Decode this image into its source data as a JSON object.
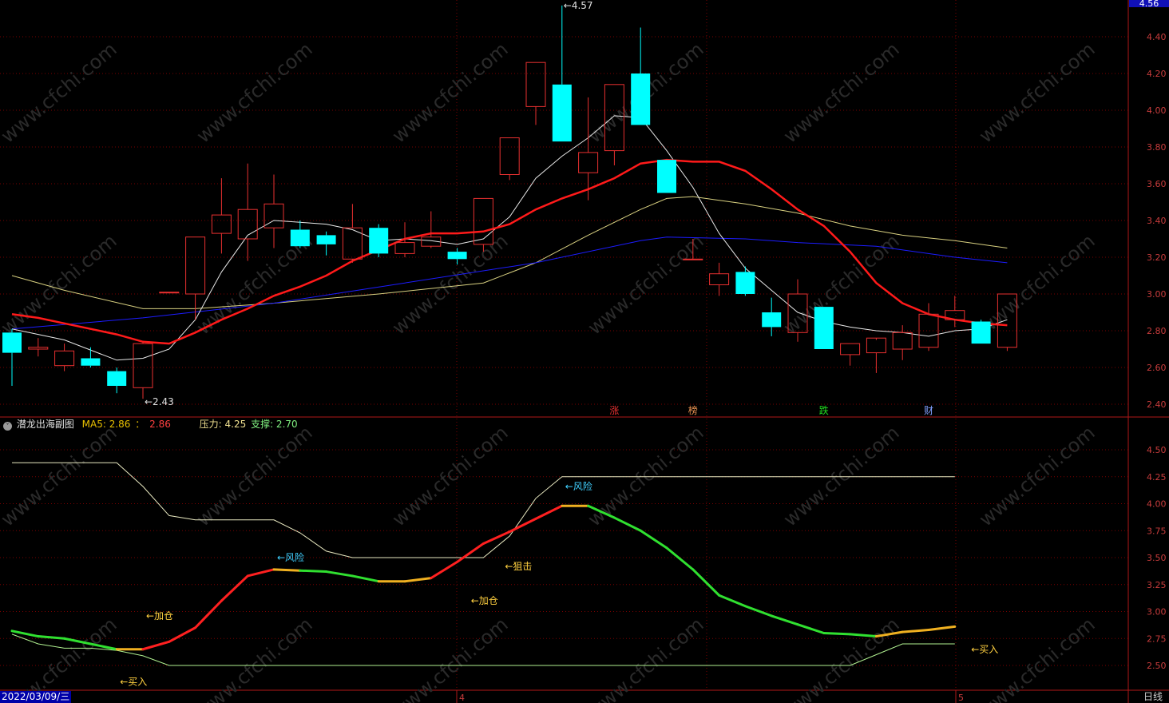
{
  "colors": {
    "bg": "#000000",
    "grid": "#7a0000",
    "up": "#e83030",
    "down": "#00ffff",
    "ma_white": "#e8e8e8",
    "ma_red": "#ff1a1a",
    "ma_blue": "#1c1cff",
    "ma_yellow": "#d8d080",
    "axis_text": "#c83c3c",
    "sub_axis_text": "#c83c3c"
  },
  "header": {
    "title": "潜龙出海副图",
    "ma5_label": "MA5: 2.86",
    "ma5_sep": "：",
    "ma5_value2": "2.86",
    "pressure": "压力: 4.25",
    "support": "支撑: 2.70"
  },
  "footer": {
    "date": "2022/03/09/三",
    "period": "日线",
    "month_labels": [
      "4",
      "5"
    ]
  },
  "current_price_tag": "4.56",
  "watermark": "www.cfchi.com",
  "chart_data": [
    {
      "type": "candlestick",
      "ylim": [
        2.36,
        4.56
      ],
      "yticks": [
        "2.40",
        "2.60",
        "2.80",
        "3.00",
        "3.20",
        "3.40",
        "3.60",
        "3.80",
        "4.00",
        "4.20",
        "4.40"
      ],
      "candles": [
        {
          "o": 2.79,
          "h": 2.81,
          "l": 2.5,
          "c": 2.68
        },
        {
          "o": 2.7,
          "h": 2.76,
          "l": 2.66,
          "c": 2.71
        },
        {
          "o": 2.61,
          "h": 2.73,
          "l": 2.58,
          "c": 2.69
        },
        {
          "o": 2.65,
          "h": 2.71,
          "l": 2.6,
          "c": 2.61
        },
        {
          "o": 2.58,
          "h": 2.6,
          "l": 2.46,
          "c": 2.5
        },
        {
          "o": 2.49,
          "h": 2.74,
          "l": 2.43,
          "c": 2.73
        },
        {
          "o": 3.01,
          "h": 3.01,
          "l": 3.01,
          "c": 3.01
        },
        {
          "o": 3.0,
          "h": 3.31,
          "l": 2.86,
          "c": 3.31
        },
        {
          "o": 3.33,
          "h": 3.63,
          "l": 3.22,
          "c": 3.43
        },
        {
          "o": 3.3,
          "h": 3.71,
          "l": 3.18,
          "c": 3.46
        },
        {
          "o": 3.36,
          "h": 3.65,
          "l": 3.25,
          "c": 3.49
        },
        {
          "o": 3.35,
          "h": 3.4,
          "l": 3.25,
          "c": 3.26
        },
        {
          "o": 3.32,
          "h": 3.34,
          "l": 3.21,
          "c": 3.27
        },
        {
          "o": 3.19,
          "h": 3.49,
          "l": 3.17,
          "c": 3.36
        },
        {
          "o": 3.36,
          "h": 3.38,
          "l": 3.2,
          "c": 3.22
        },
        {
          "o": 3.22,
          "h": 3.39,
          "l": 3.2,
          "c": 3.28
        },
        {
          "o": 3.26,
          "h": 3.45,
          "l": 3.25,
          "c": 3.31
        },
        {
          "o": 3.23,
          "h": 3.25,
          "l": 3.16,
          "c": 3.19
        },
        {
          "o": 3.27,
          "h": 3.52,
          "l": 3.23,
          "c": 3.52
        },
        {
          "o": 3.65,
          "h": 3.85,
          "l": 3.62,
          "c": 3.85
        },
        {
          "o": 4.02,
          "h": 4.26,
          "l": 3.92,
          "c": 4.26
        },
        {
          "o": 4.14,
          "h": 4.57,
          "l": 3.83,
          "c": 3.83
        },
        {
          "o": 3.66,
          "h": 4.07,
          "l": 3.51,
          "c": 3.77
        },
        {
          "o": 3.78,
          "h": 4.14,
          "l": 3.7,
          "c": 4.14
        },
        {
          "o": 4.2,
          "h": 4.45,
          "l": 3.92,
          "c": 3.92
        },
        {
          "o": 3.73,
          "h": 3.73,
          "l": 3.55,
          "c": 3.55
        },
        {
          "o": 3.19,
          "h": 3.3,
          "l": 3.19,
          "c": 3.19
        },
        {
          "o": 3.05,
          "h": 3.17,
          "l": 2.99,
          "c": 3.11
        },
        {
          "o": 3.12,
          "h": 3.15,
          "l": 2.99,
          "c": 3.0
        },
        {
          "o": 2.9,
          "h": 2.98,
          "l": 2.77,
          "c": 2.82
        },
        {
          "o": 2.79,
          "h": 3.08,
          "l": 2.74,
          "c": 3.0
        },
        {
          "o": 2.93,
          "h": 2.93,
          "l": 2.7,
          "c": 2.7
        },
        {
          "o": 2.67,
          "h": 2.73,
          "l": 2.61,
          "c": 2.73
        },
        {
          "o": 2.68,
          "h": 2.75,
          "l": 2.57,
          "c": 2.76
        },
        {
          "o": 2.7,
          "h": 2.83,
          "l": 2.64,
          "c": 2.79
        },
        {
          "o": 2.71,
          "h": 2.95,
          "l": 2.69,
          "c": 2.89
        },
        {
          "o": 2.86,
          "h": 2.99,
          "l": 2.82,
          "c": 2.91
        },
        {
          "o": 2.85,
          "h": 2.86,
          "l": 2.73,
          "c": 2.73
        },
        {
          "o": 2.71,
          "h": 3.0,
          "l": 2.69,
          "c": 3.0
        }
      ],
      "ma_white": [
        [
          0,
          2.81
        ],
        [
          2,
          2.75
        ],
        [
          4,
          2.64
        ],
        [
          5,
          2.65
        ],
        [
          6,
          2.7
        ],
        [
          7,
          2.86
        ],
        [
          8,
          3.12
        ],
        [
          9,
          3.32
        ],
        [
          10,
          3.4
        ],
        [
          11,
          3.39
        ],
        [
          12,
          3.38
        ],
        [
          13,
          3.35
        ],
        [
          14,
          3.29
        ],
        [
          15,
          3.3
        ],
        [
          16,
          3.29
        ],
        [
          17,
          3.27
        ],
        [
          18,
          3.3
        ],
        [
          19,
          3.42
        ],
        [
          20,
          3.63
        ],
        [
          21,
          3.75
        ],
        [
          22,
          3.85
        ],
        [
          23,
          3.97
        ],
        [
          24,
          3.96
        ],
        [
          25,
          3.78
        ],
        [
          26,
          3.58
        ],
        [
          27,
          3.33
        ],
        [
          28,
          3.14
        ],
        [
          29,
          3.02
        ],
        [
          30,
          2.9
        ],
        [
          31,
          2.85
        ],
        [
          32,
          2.82
        ],
        [
          33,
          2.8
        ],
        [
          34,
          2.79
        ],
        [
          35,
          2.77
        ],
        [
          36,
          2.8
        ],
        [
          37,
          2.81
        ],
        [
          38,
          2.86
        ]
      ],
      "ma_red": [
        [
          0,
          2.89
        ],
        [
          1,
          2.87
        ],
        [
          2,
          2.84
        ],
        [
          3,
          2.81
        ],
        [
          4,
          2.78
        ],
        [
          5,
          2.74
        ],
        [
          6,
          2.73
        ],
        [
          7,
          2.79
        ],
        [
          8,
          2.86
        ],
        [
          9,
          2.92
        ],
        [
          10,
          2.99
        ],
        [
          11,
          3.04
        ],
        [
          12,
          3.1
        ],
        [
          13,
          3.18
        ],
        [
          14,
          3.24
        ],
        [
          15,
          3.3
        ],
        [
          16,
          3.33
        ],
        [
          17,
          3.33
        ],
        [
          18,
          3.34
        ],
        [
          19,
          3.38
        ],
        [
          20,
          3.46
        ],
        [
          21,
          3.52
        ],
        [
          22,
          3.57
        ],
        [
          23,
          3.63
        ],
        [
          24,
          3.71
        ],
        [
          25,
          3.73
        ],
        [
          26,
          3.72
        ],
        [
          27,
          3.72
        ],
        [
          28,
          3.67
        ],
        [
          29,
          3.57
        ],
        [
          30,
          3.46
        ],
        [
          31,
          3.37
        ],
        [
          32,
          3.23
        ],
        [
          33,
          3.06
        ],
        [
          34,
          2.95
        ],
        [
          35,
          2.89
        ],
        [
          36,
          2.86
        ],
        [
          37,
          2.84
        ],
        [
          38,
          2.83
        ]
      ],
      "ma_blue": [
        [
          0,
          2.81
        ],
        [
          5,
          2.87
        ],
        [
          10,
          2.95
        ],
        [
          15,
          3.06
        ],
        [
          20,
          3.17
        ],
        [
          24,
          3.29
        ],
        [
          25,
          3.31
        ],
        [
          28,
          3.3
        ],
        [
          30,
          3.28
        ],
        [
          33,
          3.26
        ],
        [
          36,
          3.2
        ],
        [
          38,
          3.17
        ]
      ],
      "ma_yellow": [
        [
          0,
          3.1
        ],
        [
          2,
          3.02
        ],
        [
          5,
          2.92
        ],
        [
          7,
          2.92
        ],
        [
          10,
          2.95
        ],
        [
          14,
          3.0
        ],
        [
          18,
          3.06
        ],
        [
          20,
          3.17
        ],
        [
          22,
          3.32
        ],
        [
          24,
          3.46
        ],
        [
          25,
          3.52
        ],
        [
          26,
          3.53
        ],
        [
          28,
          3.49
        ],
        [
          30,
          3.44
        ],
        [
          32,
          3.37
        ],
        [
          34,
          3.32
        ],
        [
          36,
          3.29
        ],
        [
          38,
          3.25
        ]
      ],
      "annotations": [
        {
          "text": "4.57",
          "index": 21,
          "price": 4.57
        },
        {
          "text": "2.43",
          "index": 5,
          "price": 2.43
        }
      ],
      "event_markers": [
        {
          "text": "涨",
          "index": 23,
          "color": "#e83030"
        },
        {
          "text": "榜",
          "index": 26,
          "color": "#e89050"
        },
        {
          "text": "跌",
          "index": 31,
          "color": "#20e020"
        },
        {
          "text": "财",
          "index": 35,
          "color": "#80a0ff"
        }
      ]
    },
    {
      "type": "line",
      "title": "潜龙出海副图",
      "ylim": [
        2.4,
        4.62
      ],
      "yticks": [
        "2.50",
        "2.75",
        "3.00",
        "3.25",
        "3.50",
        "3.75",
        "4.00",
        "4.25",
        "4.50"
      ],
      "series": [
        {
          "name": "MA5",
          "color": "multicolor",
          "values": [
            2.82,
            2.77,
            2.75,
            2.7,
            2.65,
            2.65,
            2.72,
            2.85,
            3.1,
            3.33,
            3.39,
            3.38,
            3.37,
            3.33,
            3.28,
            3.28,
            3.31,
            3.46,
            3.63,
            3.74,
            3.86,
            3.98,
            3.98,
            3.87,
            3.75,
            3.59,
            3.39,
            3.15,
            3.05,
            2.96,
            2.88,
            2.8,
            2.79,
            2.77,
            2.81,
            2.83,
            2.86
          ],
          "segment_colors": [
            "green",
            "green",
            "green",
            "green",
            "orange",
            "red",
            "red",
            "red",
            "red",
            "red",
            "orange",
            "green",
            "green",
            "green",
            "orange",
            "orange",
            "red",
            "red",
            "red",
            "red",
            "red",
            "orange",
            "green",
            "green",
            "green",
            "green",
            "green",
            "green",
            "green",
            "green",
            "green",
            "green",
            "green",
            "orange",
            "orange",
            "orange"
          ]
        },
        {
          "name": "压力",
          "color": "#e8e8c0",
          "values": [
            4.38,
            4.38,
            4.38,
            4.38,
            4.38,
            4.16,
            3.89,
            3.85,
            3.85,
            3.85,
            3.85,
            3.73,
            3.56,
            3.5,
            3.5,
            3.5,
            3.5,
            3.5,
            3.5,
            3.7,
            4.05,
            4.25,
            4.25,
            4.25,
            4.25,
            4.25,
            4.25,
            4.25,
            4.25,
            4.25,
            4.25,
            4.25,
            4.25,
            4.25,
            4.25,
            4.25,
            4.25
          ]
        },
        {
          "name": "支撑",
          "color": "#b0f090",
          "values": [
            2.79,
            2.7,
            2.66,
            2.66,
            2.64,
            2.59,
            2.5,
            2.5,
            2.5,
            2.5,
            2.5,
            2.5,
            2.5,
            2.5,
            2.5,
            2.5,
            2.5,
            2.5,
            2.5,
            2.5,
            2.5,
            2.5,
            2.5,
            2.5,
            2.5,
            2.5,
            2.5,
            2.5,
            2.5,
            2.5,
            2.5,
            2.5,
            2.5,
            2.6,
            2.7,
            2.7,
            2.7
          ]
        }
      ],
      "annotations": [
        {
          "text": "←风险",
          "index": 10,
          "value": 3.5,
          "color": "#40d0ff"
        },
        {
          "text": "←风险",
          "index": 21,
          "value": 4.16,
          "color": "#40d0ff"
        },
        {
          "text": "←加仓",
          "index": 5,
          "value": 2.96,
          "color": "#ffd040"
        },
        {
          "text": "←加仓",
          "index": 17.4,
          "value": 3.1,
          "color": "#ffd040"
        },
        {
          "text": "←狙击",
          "index": 18.7,
          "value": 3.42,
          "color": "#ffd040"
        },
        {
          "text": "←买入",
          "index": 4,
          "value": 2.35,
          "color": "#ffd040"
        },
        {
          "text": "←买入",
          "index": 36.5,
          "value": 2.65,
          "color": "#ffd040"
        }
      ]
    }
  ]
}
